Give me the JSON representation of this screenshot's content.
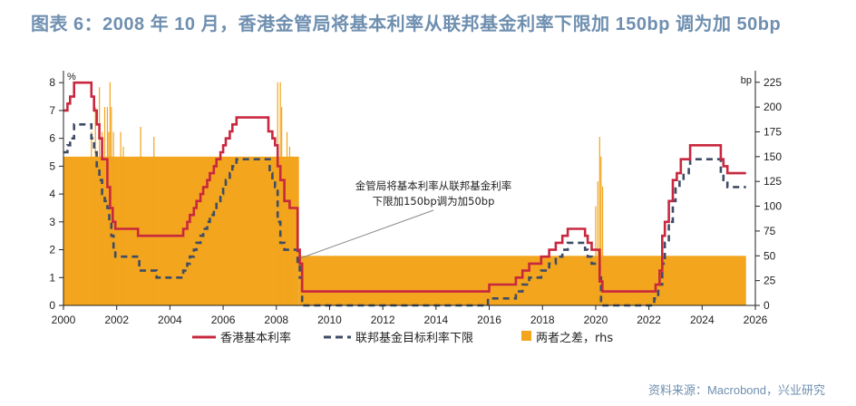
{
  "header": {
    "title": "图表 6：2008 年 10 月，香港金管局将基本利率从联邦基金利率下限加 150bp 调为加 50bp"
  },
  "source": "资料来源：Macrobond，兴业研究",
  "colors": {
    "base_rate": "#c8283f",
    "fed_lower": "#3e4c66",
    "spread": "#f2a51d",
    "title": "#6f8fb0"
  },
  "chart_data": {
    "type": "line",
    "x_range": [
      2000,
      2026
    ],
    "x_ticks": [
      "2000",
      "2002",
      "2004",
      "2006",
      "2008",
      "2010",
      "2012",
      "2014",
      "2016",
      "2018",
      "2020",
      "2022",
      "2024",
      "2026"
    ],
    "y_left": {
      "unit": "%",
      "range": [
        0,
        8.3
      ],
      "ticks": [
        "0",
        "1",
        "2",
        "3",
        "4",
        "5",
        "6",
        "7",
        "8"
      ]
    },
    "y_right": {
      "unit": "bp",
      "range": [
        0,
        233
      ],
      "ticks": [
        "0",
        "25",
        "50",
        "75",
        "100",
        "125",
        "150",
        "175",
        "200",
        "225"
      ]
    },
    "annotation": {
      "line1": "金管局将基本利率从联邦基金利率",
      "line2": "下限加150bp调为加50bp",
      "point": [
        2008.85,
        1.7
      ]
    },
    "legend": [
      {
        "key": "base",
        "label": "香港基本利率"
      },
      {
        "key": "fed",
        "label": "联邦基金目标利率下限"
      },
      {
        "key": "spread",
        "label": "两者之差，rhs"
      }
    ],
    "series": [
      {
        "name": "香港基本利率",
        "axis": "left",
        "step": true,
        "points": [
          [
            2000.0,
            7.0
          ],
          [
            2000.15,
            7.25
          ],
          [
            2000.25,
            7.5
          ],
          [
            2000.4,
            8.0
          ],
          [
            2000.55,
            8.0
          ],
          [
            2001.0,
            8.0
          ],
          [
            2001.05,
            7.5
          ],
          [
            2001.15,
            7.0
          ],
          [
            2001.25,
            6.5
          ],
          [
            2001.35,
            6.0
          ],
          [
            2001.45,
            5.25
          ],
          [
            2001.65,
            4.25
          ],
          [
            2001.75,
            3.5
          ],
          [
            2001.85,
            3.0
          ],
          [
            2001.95,
            2.75
          ],
          [
            2002.8,
            2.5
          ],
          [
            2003.5,
            2.5
          ],
          [
            2004.5,
            2.75
          ],
          [
            2004.65,
            3.0
          ],
          [
            2004.75,
            3.25
          ],
          [
            2004.9,
            3.5
          ],
          [
            2005.0,
            3.75
          ],
          [
            2005.15,
            4.0
          ],
          [
            2005.25,
            4.25
          ],
          [
            2005.4,
            4.5
          ],
          [
            2005.5,
            4.75
          ],
          [
            2005.65,
            5.0
          ],
          [
            2005.75,
            5.25
          ],
          [
            2005.9,
            5.5
          ],
          [
            2006.0,
            5.75
          ],
          [
            2006.1,
            6.0
          ],
          [
            2006.25,
            6.25
          ],
          [
            2006.35,
            6.5
          ],
          [
            2006.5,
            6.75
          ],
          [
            2007.65,
            6.75
          ],
          [
            2007.7,
            6.25
          ],
          [
            2007.85,
            6.0
          ],
          [
            2007.95,
            5.75
          ],
          [
            2008.05,
            5.0
          ],
          [
            2008.15,
            4.5
          ],
          [
            2008.3,
            3.75
          ],
          [
            2008.5,
            3.5
          ],
          [
            2008.8,
            2.0
          ],
          [
            2008.88,
            1.5
          ],
          [
            2008.97,
            0.5
          ],
          [
            2015.95,
            0.5
          ],
          [
            2016.0,
            0.75
          ],
          [
            2017.0,
            1.0
          ],
          [
            2017.25,
            1.25
          ],
          [
            2017.5,
            1.5
          ],
          [
            2017.95,
            1.75
          ],
          [
            2018.25,
            2.0
          ],
          [
            2018.5,
            2.25
          ],
          [
            2018.75,
            2.5
          ],
          [
            2018.95,
            2.75
          ],
          [
            2019.6,
            2.5
          ],
          [
            2019.7,
            2.25
          ],
          [
            2019.85,
            2.0
          ],
          [
            2020.15,
            0.86
          ],
          [
            2020.25,
            0.5
          ],
          [
            2022.25,
            0.75
          ],
          [
            2022.4,
            1.25
          ],
          [
            2022.5,
            2.5
          ],
          [
            2022.6,
            3.0
          ],
          [
            2022.75,
            3.75
          ],
          [
            2022.9,
            4.5
          ],
          [
            2023.05,
            4.75
          ],
          [
            2023.2,
            5.25
          ],
          [
            2023.55,
            5.75
          ],
          [
            2024.7,
            5.25
          ],
          [
            2024.8,
            5.0
          ],
          [
            2024.95,
            4.75
          ],
          [
            2025.65,
            4.75
          ]
        ]
      },
      {
        "name": "联邦基金目标利率下限",
        "axis": "left",
        "step": true,
        "points": [
          [
            2000.0,
            5.5
          ],
          [
            2000.15,
            5.75
          ],
          [
            2000.25,
            6.0
          ],
          [
            2000.4,
            6.5
          ],
          [
            2001.0,
            6.5
          ],
          [
            2001.05,
            6.0
          ],
          [
            2001.15,
            5.5
          ],
          [
            2001.25,
            5.0
          ],
          [
            2001.35,
            4.5
          ],
          [
            2001.45,
            4.0
          ],
          [
            2001.55,
            3.75
          ],
          [
            2001.65,
            3.5
          ],
          [
            2001.72,
            3.0
          ],
          [
            2001.8,
            2.5
          ],
          [
            2001.88,
            2.0
          ],
          [
            2001.95,
            1.75
          ],
          [
            2002.85,
            1.25
          ],
          [
            2003.5,
            1.0
          ],
          [
            2004.5,
            1.25
          ],
          [
            2004.65,
            1.5
          ],
          [
            2004.75,
            1.75
          ],
          [
            2004.9,
            2.0
          ],
          [
            2005.0,
            2.25
          ],
          [
            2005.15,
            2.5
          ],
          [
            2005.25,
            2.75
          ],
          [
            2005.4,
            3.0
          ],
          [
            2005.5,
            3.25
          ],
          [
            2005.65,
            3.5
          ],
          [
            2005.75,
            3.75
          ],
          [
            2005.9,
            4.0
          ],
          [
            2006.0,
            4.25
          ],
          [
            2006.1,
            4.5
          ],
          [
            2006.25,
            4.75
          ],
          [
            2006.35,
            5.0
          ],
          [
            2006.5,
            5.25
          ],
          [
            2007.7,
            5.25
          ],
          [
            2007.75,
            4.75
          ],
          [
            2007.85,
            4.5
          ],
          [
            2007.95,
            4.25
          ],
          [
            2008.05,
            3.0
          ],
          [
            2008.15,
            2.25
          ],
          [
            2008.3,
            2.0
          ],
          [
            2008.8,
            1.5
          ],
          [
            2008.88,
            1.0
          ],
          [
            2008.97,
            0.0
          ],
          [
            2015.95,
            0.25
          ],
          [
            2017.0,
            0.5
          ],
          [
            2017.25,
            0.75
          ],
          [
            2017.5,
            1.0
          ],
          [
            2017.95,
            1.25
          ],
          [
            2018.25,
            1.5
          ],
          [
            2018.5,
            1.75
          ],
          [
            2018.75,
            2.0
          ],
          [
            2018.95,
            2.25
          ],
          [
            2019.6,
            2.0
          ],
          [
            2019.7,
            1.75
          ],
          [
            2019.85,
            1.5
          ],
          [
            2020.15,
            1.0
          ],
          [
            2020.2,
            0.0
          ],
          [
            2022.2,
            0.25
          ],
          [
            2022.35,
            0.75
          ],
          [
            2022.5,
            1.5
          ],
          [
            2022.6,
            2.25
          ],
          [
            2022.75,
            3.0
          ],
          [
            2022.9,
            3.75
          ],
          [
            2023.0,
            4.25
          ],
          [
            2023.15,
            4.5
          ],
          [
            2023.3,
            4.75
          ],
          [
            2023.5,
            5.0
          ],
          [
            2023.55,
            5.25
          ],
          [
            2024.7,
            4.75
          ],
          [
            2024.8,
            4.5
          ],
          [
            2024.95,
            4.25
          ],
          [
            2025.65,
            4.25
          ]
        ]
      },
      {
        "name": "两者之差，rhs",
        "axis": "right",
        "type": "bar",
        "segments": [
          {
            "from": 2000.0,
            "to": 2008.85,
            "value": 150
          },
          {
            "from": 2008.85,
            "to": 2025.65,
            "value": 50
          }
        ],
        "spikes": [
          [
            2001.05,
            175
          ],
          [
            2001.2,
            200
          ],
          [
            2001.35,
            220
          ],
          [
            2001.45,
            175
          ],
          [
            2001.55,
            200
          ],
          [
            2001.65,
            200
          ],
          [
            2001.7,
            175
          ],
          [
            2001.75,
            225
          ],
          [
            2001.8,
            200
          ],
          [
            2001.88,
            175
          ],
          [
            2002.15,
            175
          ],
          [
            2002.25,
            160
          ],
          [
            2002.9,
            180
          ],
          [
            2003.4,
            170
          ],
          [
            2008.05,
            225
          ],
          [
            2008.15,
            225
          ],
          [
            2008.2,
            200
          ],
          [
            2008.4,
            175
          ],
          [
            2008.5,
            160
          ],
          [
            2008.6,
            150
          ],
          [
            2020.0,
            100
          ],
          [
            2020.08,
            125
          ],
          [
            2020.15,
            170
          ],
          [
            2020.2,
            150
          ],
          [
            2020.26,
            120
          ]
        ]
      }
    ]
  }
}
